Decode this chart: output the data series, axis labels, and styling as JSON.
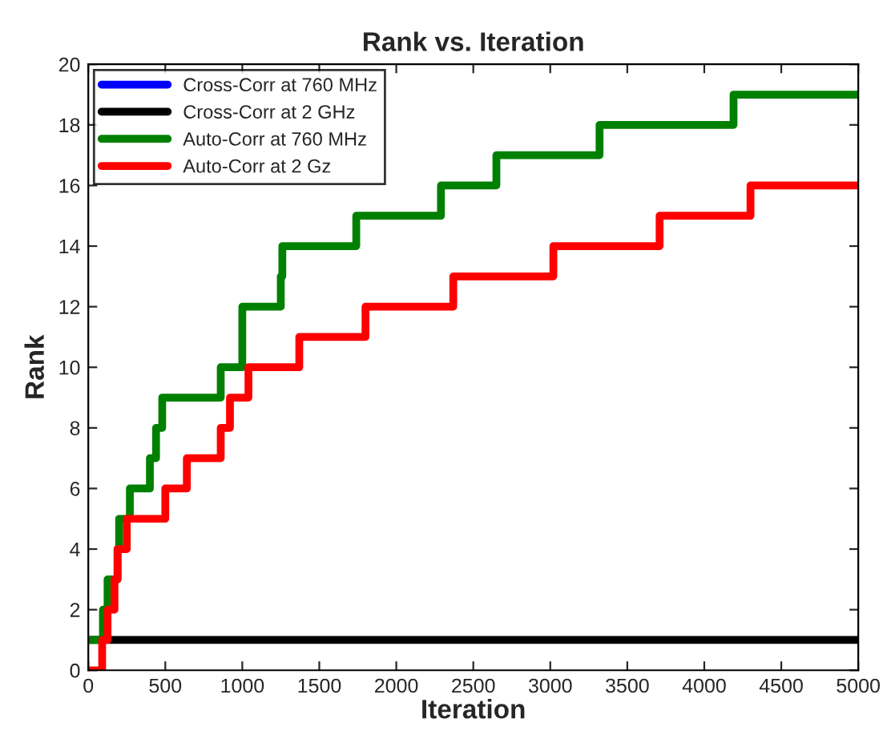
{
  "chart_data": {
    "type": "step",
    "title": "Rank vs. Iteration",
    "xlabel": "Iteration",
    "ylabel": "Rank",
    "xlim": [
      0,
      5000
    ],
    "xticks": [
      0,
      500,
      1000,
      1500,
      2000,
      2500,
      3000,
      3500,
      4000,
      4500,
      5000
    ],
    "ylim": [
      0,
      20
    ],
    "yticks": [
      0,
      2,
      4,
      6,
      8,
      10,
      12,
      14,
      16,
      18,
      20
    ],
    "grid": false,
    "legend": "top left",
    "line_style": "solid",
    "marker": "none",
    "series": [
      {
        "name": "Cross-Corr at 760 MHz",
        "color": "#0000ff"
      },
      {
        "name": "Cross-Corr at 2 GHz",
        "color": "#000000",
        "x": [
          0,
          5000
        ],
        "values": [
          1,
          1
        ]
      },
      {
        "name": "Auto-Corr at 760 MHz",
        "color": "#008000",
        "x": [
          0,
          95,
          125,
          190,
          200,
          270,
          400,
          440,
          480,
          860,
          1000,
          1250,
          1260,
          1740,
          2290,
          2650,
          3320,
          4190,
          5000
        ],
        "values": [
          1,
          2,
          3,
          4,
          5,
          6,
          7,
          8,
          9,
          10,
          12,
          13,
          14,
          15,
          16,
          17,
          18,
          19,
          19
        ]
      },
      {
        "name": "Auto-Corr at 2 Gz",
        "color": "#ff0000",
        "x": [
          0,
          90,
          125,
          170,
          190,
          250,
          500,
          640,
          860,
          920,
          1040,
          1370,
          1800,
          2370,
          3020,
          3710,
          4300,
          5000
        ],
        "values": [
          0,
          1,
          2,
          3,
          4,
          5,
          6,
          7,
          8,
          9,
          10,
          11,
          12,
          13,
          14,
          15,
          16,
          16
        ]
      }
    ]
  }
}
